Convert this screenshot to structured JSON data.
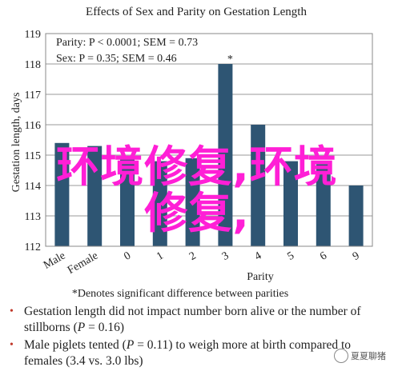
{
  "chart_data": {
    "type": "bar",
    "title": "Effects of Sex and Parity on Gestation Length",
    "ylabel": "Gestation length, days",
    "xlabel": "Parity",
    "ylim": [
      112,
      119
    ],
    "yticks": [
      112,
      113,
      114,
      115,
      116,
      117,
      118,
      119
    ],
    "categories": [
      "Male",
      "Female",
      "0",
      "1",
      "2",
      "3",
      "4",
      "5",
      "6",
      "9"
    ],
    "values": [
      115.4,
      115.3,
      114.9,
      114.8,
      114.9,
      118.0,
      116.0,
      114.8,
      114.7,
      114.0
    ],
    "bar_color": "#2e5573",
    "stats_line1": "Parity: P < 0.0001; SEM = 0.73",
    "stats_line2": "Sex: P = 0.35; SEM = 0.46",
    "significance_mark": "*",
    "significance_category": "3",
    "footnote": "*Denotes significant difference between parities"
  },
  "overlay": {
    "line1": "环境修复,环境",
    "line2": "修复,",
    "color": "#ff1fd6"
  },
  "bullets": [
    {
      "pre": "Gestation length did not impact number born alive or the number of stillborns (",
      "italic": "P",
      "post": " = 0.16)"
    },
    {
      "pre": "Male piglets tented (",
      "italic": "P",
      "post": " = 0.11) to weigh more at birth compared to females (3.4 vs. 3.0 lbs)"
    }
  ],
  "watermark": {
    "text": "夏夏聊猪",
    "icon": "wechat-icon"
  }
}
